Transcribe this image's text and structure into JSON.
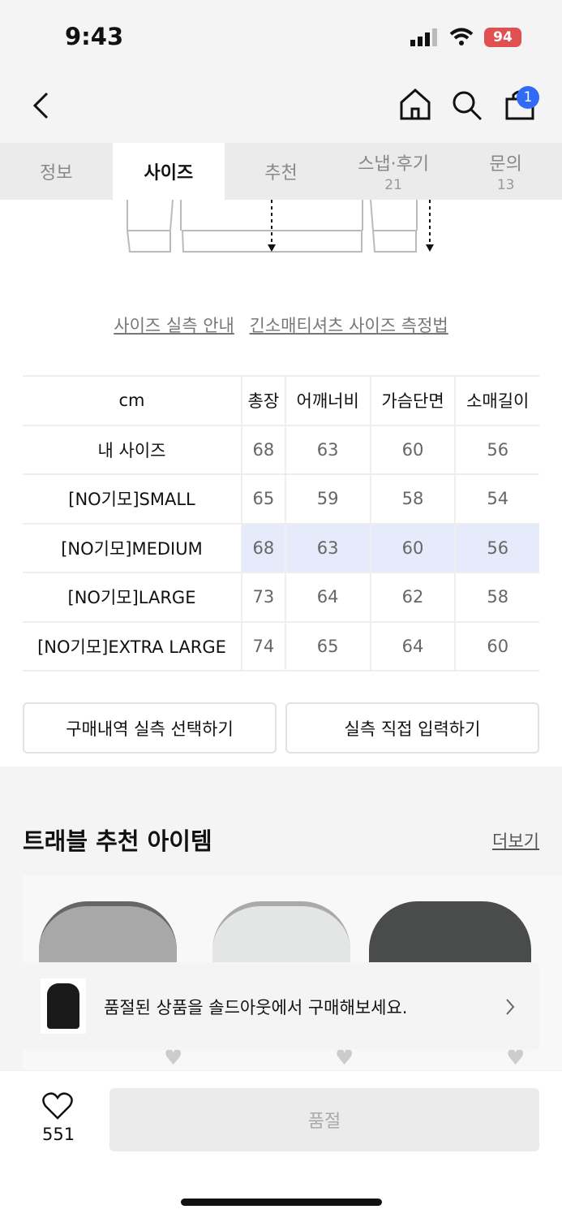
{
  "status": {
    "time": "9:43",
    "battery": "94"
  },
  "header": {
    "cart_count": "1"
  },
  "tabs": [
    {
      "label": "정보"
    },
    {
      "label": "사이즈"
    },
    {
      "label": "추천"
    },
    {
      "label": "스냅·후기",
      "count": "21"
    },
    {
      "label": "문의",
      "count": "13"
    }
  ],
  "links": {
    "guide": "사이즈 실측 안내",
    "method": "긴소매티셔츠 사이즈 측정법"
  },
  "size_table": {
    "headers": [
      "cm",
      "총장",
      "어깨너비",
      "가슴단면",
      "소매길이"
    ],
    "rows": [
      [
        "내 사이즈",
        "68",
        "63",
        "60",
        "56"
      ],
      [
        "[NO기모]SMALL",
        "65",
        "59",
        "58",
        "54"
      ],
      [
        "[NO기모]MEDIUM",
        "68",
        "63",
        "60",
        "56"
      ],
      [
        "[NO기모]LARGE",
        "73",
        "64",
        "62",
        "58"
      ],
      [
        "[NO기모]EXTRA LARGE",
        "74",
        "65",
        "64",
        "60"
      ]
    ],
    "highlight_color": "#e6ebfb"
  },
  "buttons": {
    "history": "구매내역 실측 선택하기",
    "manual": "실측 직접 입력하기"
  },
  "recommend": {
    "title": "트래블 추천 아이템",
    "more": "더보기"
  },
  "banner": {
    "text": "품절된 상품을 솔드아웃에서 구매해보세요."
  },
  "bottom": {
    "likes": "551",
    "soldout": "품절"
  }
}
